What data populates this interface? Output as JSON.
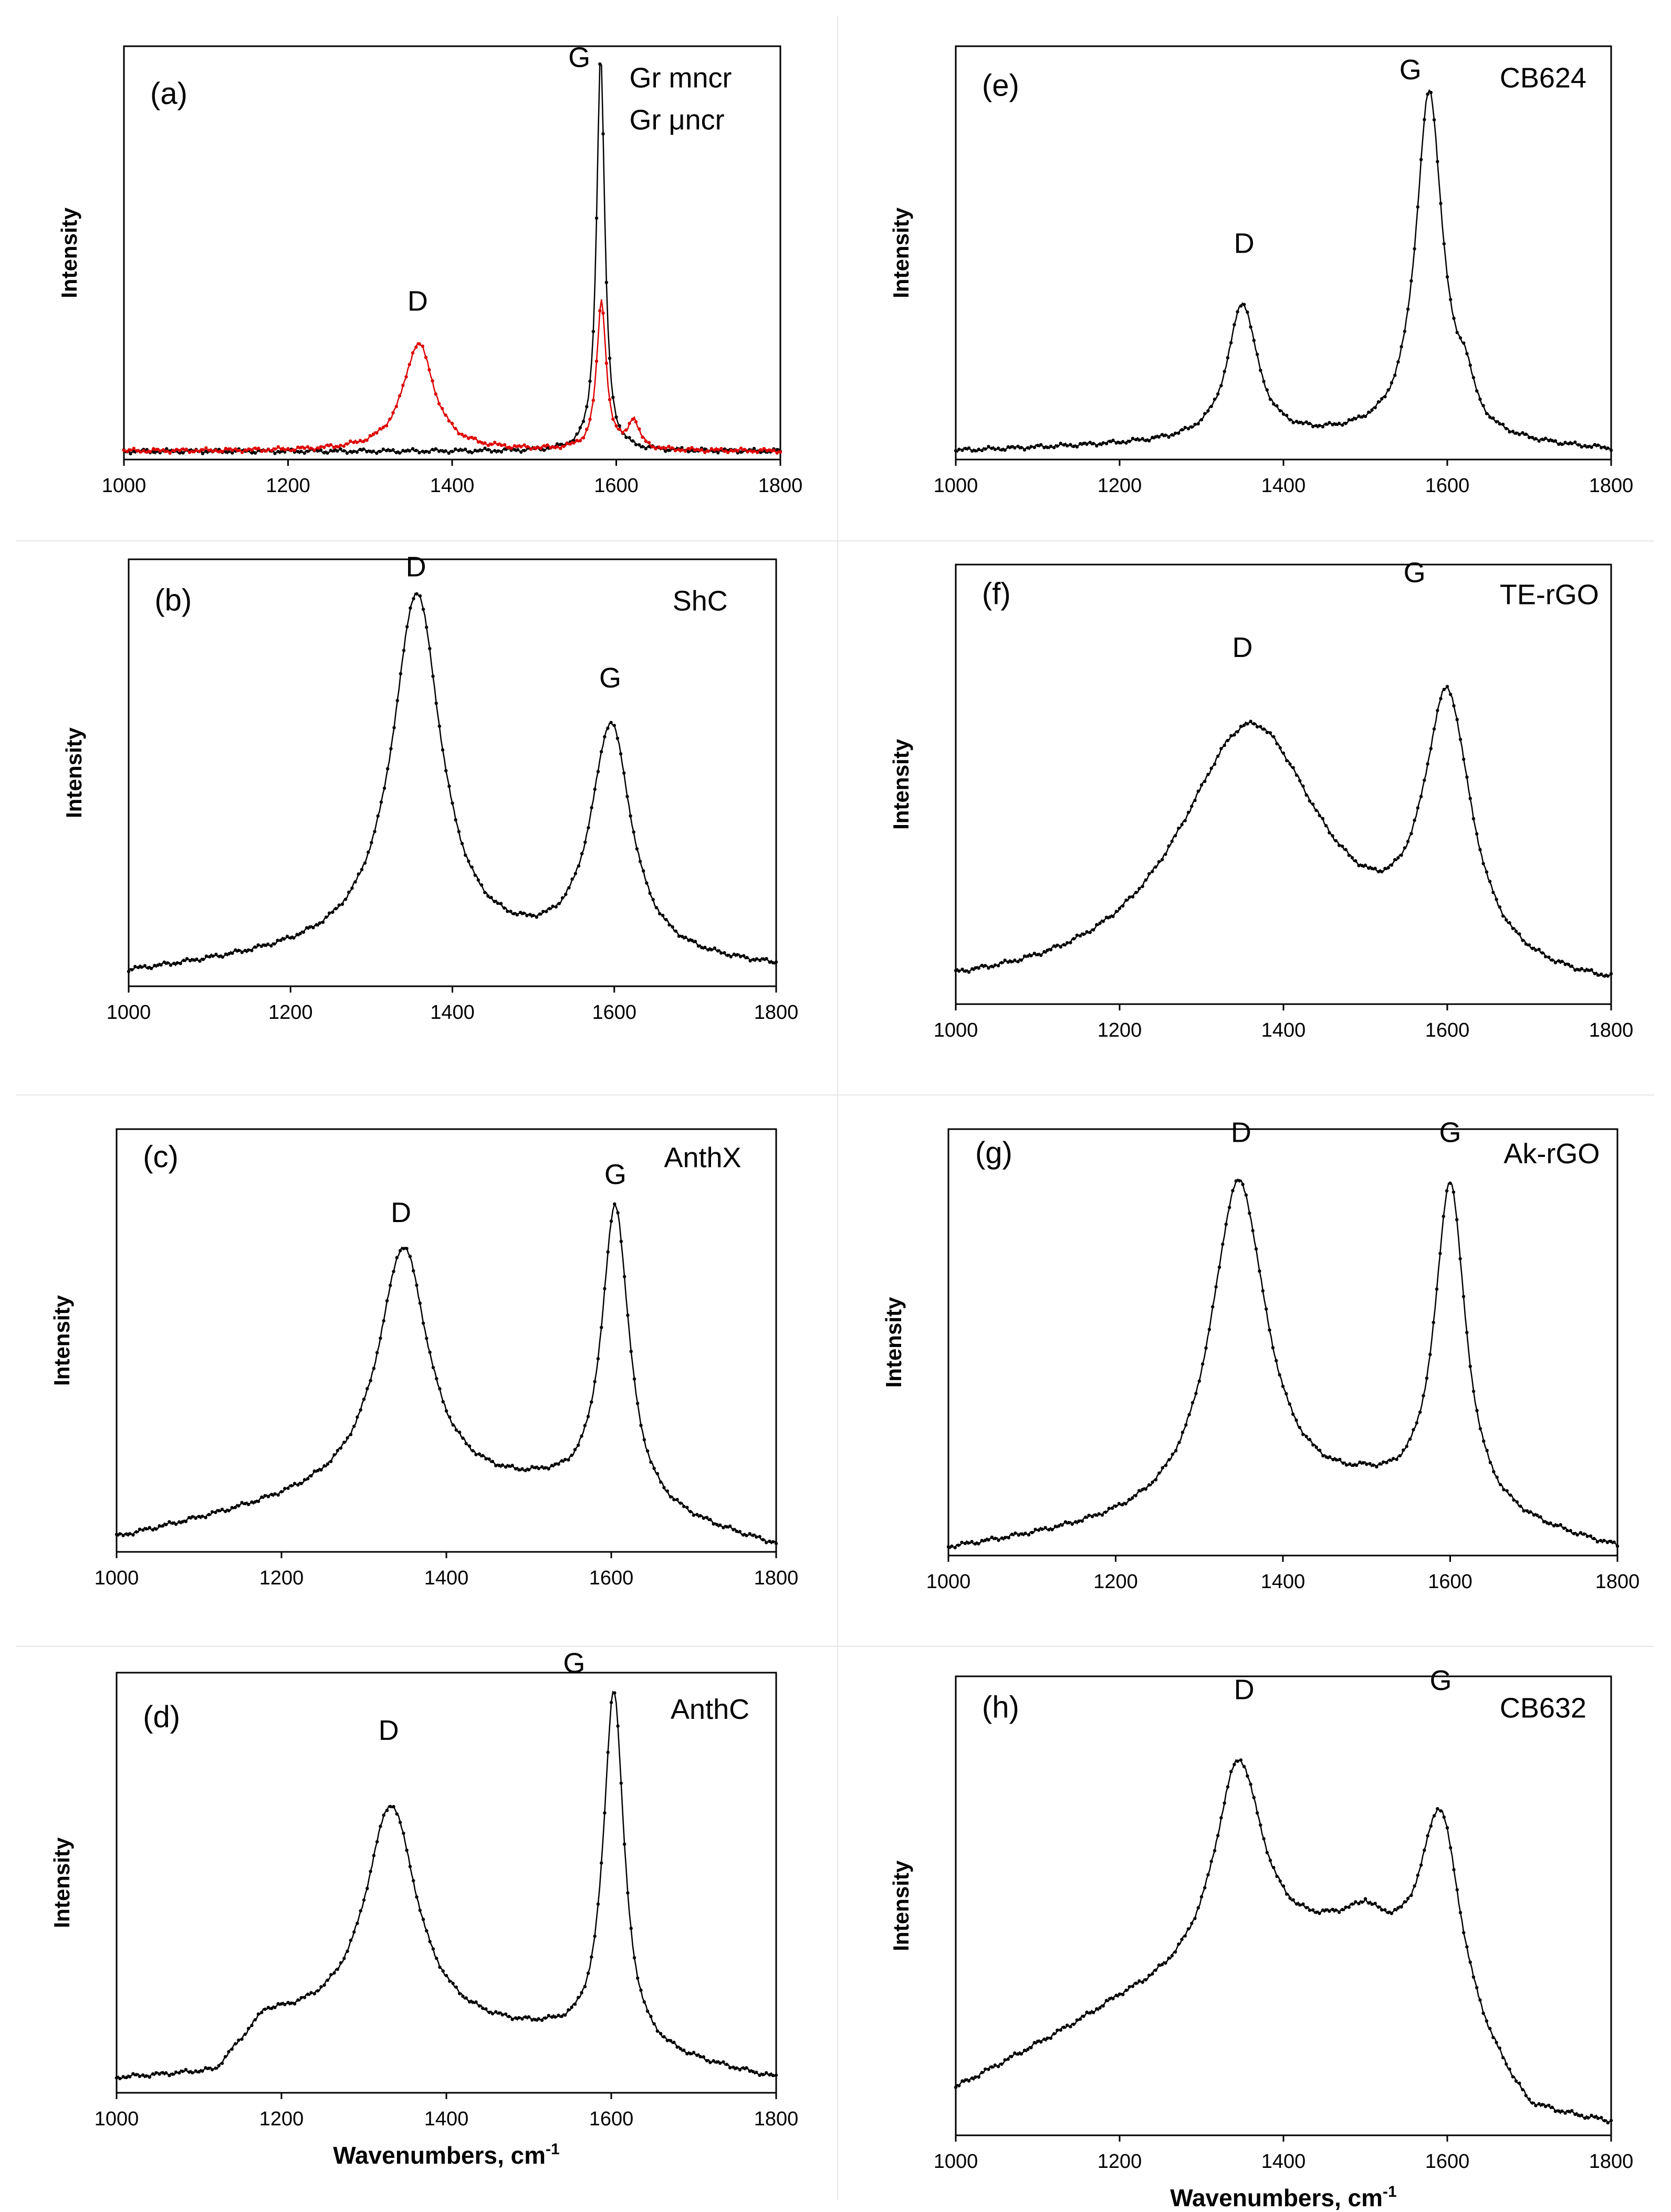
{
  "figure": {
    "x_axis_title_main": "Wavenumbers, cm",
    "x_axis_title_sup": "-1",
    "y_axis_title": "Intensity"
  },
  "chart_data": [
    {
      "id": "a",
      "type": "line",
      "panel_label": "(a)",
      "legend": [
        "Gr mncr",
        "Gr μncr"
      ],
      "xlim": [
        1000,
        1800
      ],
      "ylim": [
        0,
        1
      ],
      "xticks": [
        1000,
        1200,
        1400,
        1600,
        1800
      ],
      "ylabel": "Intensity",
      "xlabel": "",
      "peak_labels": [
        {
          "text": "D",
          "x": 1358,
          "y": 0.36
        },
        {
          "text": "G",
          "x": 1555,
          "y": 0.95
        }
      ],
      "series": [
        {
          "name": "Gr mncr",
          "color": "#000000",
          "baseline": [
            [
              1000,
              0.02
            ],
            [
              1800,
              0.02
            ]
          ],
          "peaks": [
            {
              "center": 1581,
              "height": 0.96,
              "width": 6
            }
          ]
        },
        {
          "name": "Gr μncr",
          "color": "#dd0000",
          "baseline": [
            [
              1000,
              0.02
            ],
            [
              1800,
              0.02
            ]
          ],
          "peaks": [
            {
              "center": 1359,
              "height": 0.26,
              "width": 23
            },
            {
              "center": 1582,
              "height": 0.36,
              "width": 7
            },
            {
              "center": 1621,
              "height": 0.07,
              "width": 8
            }
          ]
        }
      ]
    },
    {
      "id": "b",
      "type": "line",
      "panel_label": "(b)",
      "sample": "ShC",
      "xlim": [
        1000,
        1800
      ],
      "ylim": [
        0,
        1
      ],
      "xticks": [
        1000,
        1200,
        1400,
        1600,
        1800
      ],
      "ylabel": "Intensity",
      "xlabel": "",
      "peak_labels": [
        {
          "text": "D",
          "x": 1355,
          "y": 0.96
        },
        {
          "text": "G",
          "x": 1595,
          "y": 0.7
        }
      ],
      "series": [
        {
          "name": "ShC",
          "color": "#000000",
          "baseline": [
            [
              1000,
              0.03
            ],
            [
              1300,
              0.09
            ],
            [
              1800,
              0.04
            ]
          ],
          "peaks": [
            {
              "center": 1356,
              "height": 0.83,
              "width": 36
            },
            {
              "center": 1596,
              "height": 0.54,
              "width": 30
            }
          ]
        }
      ]
    },
    {
      "id": "c",
      "type": "line",
      "panel_label": "(c)",
      "sample": "AnthX",
      "xlim": [
        1000,
        1800
      ],
      "ylim": [
        0,
        1
      ],
      "xticks": [
        1000,
        1200,
        1400,
        1600,
        1800
      ],
      "ylabel": "Intensity",
      "xlabel": "",
      "peak_labels": [
        {
          "text": "D",
          "x": 1345,
          "y": 0.78
        },
        {
          "text": "G",
          "x": 1605,
          "y": 0.87
        }
      ],
      "series": [
        {
          "name": "AnthX",
          "color": "#000000",
          "baseline": [
            [
              1000,
              0.03
            ],
            [
              1300,
              0.15
            ],
            [
              1520,
              0.14
            ],
            [
              1800,
              0.01
            ]
          ],
          "peaks": [
            {
              "center": 1348,
              "height": 0.57,
              "width": 36
            },
            {
              "center": 1605,
              "height": 0.71,
              "width": 20
            }
          ]
        }
      ]
    },
    {
      "id": "d",
      "type": "line",
      "panel_label": "(d)",
      "sample": "AnthC",
      "xlim": [
        1000,
        1800
      ],
      "ylim": [
        0,
        1
      ],
      "xticks": [
        1000,
        1200,
        1400,
        1600,
        1800
      ],
      "ylabel": "Intensity",
      "xlabel": "Wavenumbers, cm-1",
      "peak_labels": [
        {
          "text": "D",
          "x": 1330,
          "y": 0.84
        },
        {
          "text": "G",
          "x": 1555,
          "y": 1.0
        }
      ],
      "series": [
        {
          "name": "AnthC",
          "color": "#000000",
          "baseline": [
            [
              1000,
              0.03
            ],
            [
              1120,
              0.04
            ],
            [
              1180,
              0.17
            ],
            [
              1520,
              0.13
            ],
            [
              1800,
              0.03
            ]
          ],
          "peaks": [
            {
              "center": 1333,
              "height": 0.53,
              "width": 38
            },
            {
              "center": 1603,
              "height": 0.85,
              "width": 15
            }
          ]
        }
      ]
    },
    {
      "id": "e",
      "type": "line",
      "panel_label": "(e)",
      "sample": "CB624",
      "xlim": [
        1000,
        1800
      ],
      "ylim": [
        0,
        1
      ],
      "xticks": [
        1000,
        1200,
        1400,
        1600,
        1800
      ],
      "ylabel": "Intensity",
      "xlabel": "",
      "peak_labels": [
        {
          "text": "D",
          "x": 1352,
          "y": 0.5
        },
        {
          "text": "G",
          "x": 1555,
          "y": 0.92
        }
      ],
      "series": [
        {
          "name": "CB624",
          "color": "#000000",
          "baseline": [
            [
              1000,
              0.02
            ],
            [
              1300,
              0.04
            ],
            [
              1500,
              0.05
            ],
            [
              1800,
              0.02
            ]
          ],
          "peaks": [
            {
              "center": 1350,
              "height": 0.33,
              "width": 22
            },
            {
              "center": 1578,
              "height": 0.84,
              "width": 20
            },
            {
              "center": 1622,
              "height": 0.09,
              "width": 12
            }
          ]
        }
      ]
    },
    {
      "id": "f",
      "type": "line",
      "panel_label": "(f)",
      "sample": "TE-rGO",
      "xlim": [
        1000,
        1800
      ],
      "ylim": [
        0,
        1
      ],
      "xticks": [
        1000,
        1200,
        1400,
        1600,
        1800
      ],
      "ylabel": "Intensity",
      "xlabel": "",
      "peak_labels": [
        {
          "text": "D",
          "x": 1350,
          "y": 0.79
        },
        {
          "text": "G",
          "x": 1560,
          "y": 0.96
        }
      ],
      "series": [
        {
          "name": "TE-rGO",
          "color": "#000000",
          "baseline": [
            [
              1000,
              0.02
            ],
            [
              1800,
              0.01
            ]
          ],
          "peaks": [
            {
              "center": 1360,
              "height": 0.61,
              "width": 110
            },
            {
              "center": 1600,
              "height": 0.6,
              "width": 35
            }
          ]
        }
      ]
    },
    {
      "id": "g",
      "type": "line",
      "panel_label": "(g)",
      "sample": "Ak-rGO",
      "xlim": [
        1000,
        1800
      ],
      "ylim": [
        0,
        1
      ],
      "xticks": [
        1000,
        1200,
        1400,
        1600,
        1800
      ],
      "ylabel": "Intensity",
      "xlabel": "",
      "peak_labels": [
        {
          "text": "D",
          "x": 1350,
          "y": 0.97
        },
        {
          "text": "G",
          "x": 1600,
          "y": 0.97
        }
      ],
      "series": [
        {
          "name": "Ak-rGO",
          "color": "#000000",
          "baseline": [
            [
              1000,
              0.01
            ],
            [
              1250,
              0.07
            ],
            [
              1500,
              0.13
            ],
            [
              1800,
              0.01
            ]
          ],
          "peaks": [
            {
              "center": 1347,
              "height": 0.78,
              "width": 40
            },
            {
              "center": 1600,
              "height": 0.77,
              "width": 22
            }
          ]
        }
      ]
    },
    {
      "id": "h",
      "type": "line",
      "panel_label": "(h)",
      "sample": "CB632",
      "xlim": [
        1000,
        1800
      ],
      "ylim": [
        0,
        1
      ],
      "xticks": [
        1000,
        1200,
        1400,
        1600,
        1800
      ],
      "ylabel": "Intensity",
      "xlabel": "Wavenumbers, cm-1",
      "peak_labels": [
        {
          "text": "D",
          "x": 1352,
          "y": 0.95
        },
        {
          "text": "G",
          "x": 1592,
          "y": 0.97
        }
      ],
      "series": [
        {
          "name": "CB632",
          "color": "#000000",
          "baseline": [
            [
              1000,
              0.1
            ],
            [
              1200,
              0.28
            ],
            [
              1500,
              0.45
            ],
            [
              1700,
              0.04
            ],
            [
              1800,
              0.02
            ]
          ],
          "peaks": [
            {
              "center": 1345,
              "height": 0.45,
              "width": 36
            },
            {
              "center": 1592,
              "height": 0.44,
              "width": 30
            }
          ]
        }
      ]
    }
  ]
}
